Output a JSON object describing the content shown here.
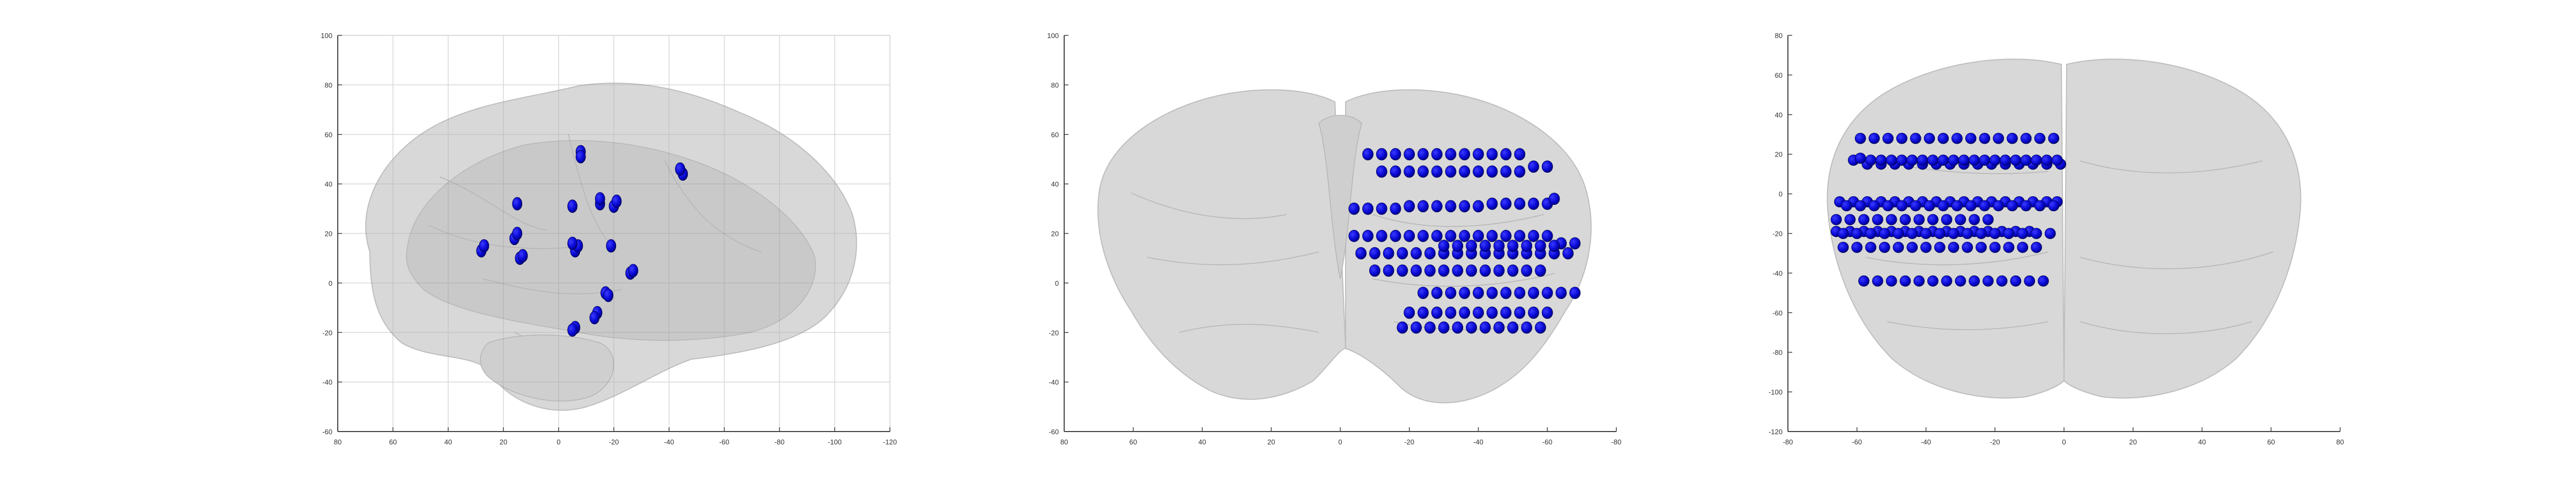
{
  "colors": {
    "electrode": "#0a0ad6",
    "brain_fill": "#8e8e8e",
    "brain_edge": "#6f6f6f",
    "grid": "#d8d8d8",
    "axis": "#444444",
    "tick_label": "#333333"
  },
  "chart_data": [
    {
      "type": "scatter",
      "view": "sagittal",
      "grid": true,
      "x_reversed": true,
      "xlim": [
        80,
        -120
      ],
      "ylim": [
        -60,
        100
      ],
      "x_ticks": [
        "80",
        "60",
        "40",
        "20",
        "0",
        "-20",
        "-40",
        "-60",
        "-80",
        "-100",
        "-120"
      ],
      "y_ticks": [
        "100",
        "80",
        "60",
        "40",
        "20",
        "0",
        "-20",
        "-40",
        "-60"
      ],
      "series": [
        {
          "marker": "dot",
          "x": [
            -8,
            -8,
            -6,
            -7,
            -45,
            -44,
            -20,
            -21,
            -5,
            -15,
            -15,
            -5,
            -19,
            -17,
            -18,
            -26,
            -27,
            -14,
            -13,
            -6,
            -5,
            28,
            27,
            16,
            15,
            14,
            13,
            15
          ],
          "y": [
            53,
            51,
            13,
            15,
            44,
            46,
            31,
            33,
            31,
            32,
            34,
            16,
            15,
            -4,
            -5,
            4,
            5,
            -12,
            -14,
            -18,
            -19,
            13,
            15,
            18,
            20,
            10,
            11,
            32
          ]
        }
      ]
    },
    {
      "type": "scatter",
      "view": "coronal",
      "grid": false,
      "x_reversed": true,
      "xlim": [
        80,
        -80
      ],
      "ylim": [
        -60,
        100
      ],
      "x_ticks": [
        "80",
        "60",
        "40",
        "20",
        "0",
        "-20",
        "-40",
        "-60",
        "-80"
      ],
      "y_ticks": [
        "100",
        "80",
        "60",
        "40",
        "20",
        "0",
        "-20",
        "-40",
        "-60"
      ],
      "series": [
        {
          "marker": "dot",
          "x": [
            -8,
            -12,
            -16,
            -20,
            -24,
            -28,
            -32,
            -36,
            -40,
            -44,
            -48,
            -52,
            -12,
            -16,
            -20,
            -24,
            -28,
            -32,
            -36,
            -40,
            -44,
            -48,
            -52,
            -56,
            -60,
            -4,
            -8,
            -12,
            -16,
            -20,
            -24,
            -28,
            -32,
            -36,
            -40,
            -44,
            -48,
            -52,
            -56,
            -60,
            -62,
            -4,
            -8,
            -12,
            -16,
            -20,
            -24,
            -28,
            -32,
            -36,
            -40,
            -44,
            -48,
            -52,
            -56,
            -60,
            -64,
            -68,
            -6,
            -10,
            -14,
            -18,
            -22,
            -26,
            -30,
            -34,
            -38,
            -42,
            -46,
            -50,
            -54,
            -58,
            -62,
            -66,
            -30,
            -34,
            -38,
            -42,
            -46,
            -50,
            -54,
            -58,
            -62,
            -10,
            -14,
            -18,
            -22,
            -26,
            -30,
            -34,
            -38,
            -42,
            -46,
            -50,
            -54,
            -58,
            -24,
            -28,
            -32,
            -36,
            -40,
            -44,
            -48,
            -52,
            -56,
            -60,
            -64,
            -68,
            -20,
            -24,
            -28,
            -32,
            -36,
            -40,
            -44,
            -48,
            -52,
            -56,
            -60,
            -18,
            -22,
            -26,
            -30,
            -34,
            -38,
            -42,
            -46,
            -50,
            -54,
            -58
          ],
          "y": [
            52,
            52,
            52,
            52,
            52,
            52,
            52,
            52,
            52,
            52,
            52,
            52,
            45,
            45,
            45,
            45,
            45,
            45,
            45,
            45,
            45,
            45,
            45,
            47,
            47,
            30,
            30,
            30,
            30,
            31,
            31,
            31,
            31,
            31,
            31,
            32,
            32,
            32,
            32,
            32,
            34,
            19,
            19,
            19,
            19,
            19,
            19,
            19,
            19,
            19,
            19,
            19,
            19,
            19,
            19,
            19,
            16,
            16,
            12,
            12,
            12,
            12,
            12,
            12,
            12,
            12,
            12,
            12,
            12,
            12,
            12,
            12,
            12,
            12,
            15,
            15,
            15,
            15,
            15,
            15,
            15,
            15,
            15,
            5,
            5,
            5,
            5,
            5,
            5,
            5,
            5,
            5,
            5,
            5,
            5,
            5,
            -4,
            -4,
            -4,
            -4,
            -4,
            -4,
            -4,
            -4,
            -4,
            -4,
            -4,
            -4,
            -12,
            -12,
            -12,
            -12,
            -12,
            -12,
            -12,
            -12,
            -12,
            -12,
            -12,
            -18,
            -18,
            -18,
            -18,
            -18,
            -18,
            -18,
            -18,
            -18,
            -18,
            -18
          ]
        }
      ]
    },
    {
      "type": "scatter",
      "view": "axial",
      "grid": false,
      "xlim": [
        -80,
        80
      ],
      "ylim": [
        -120,
        80
      ],
      "x_ticks": [
        "-80",
        "-60",
        "-40",
        "-20",
        "0",
        "20",
        "40",
        "60",
        "80"
      ],
      "y_ticks": [
        "80",
        "60",
        "40",
        "20",
        "0",
        "-20",
        "-40",
        "-60",
        "-80",
        "-100",
        "-120"
      ],
      "series": [
        {
          "marker": "dot",
          "x": [
            -59,
            -55,
            -51,
            -47,
            -43,
            -39,
            -35,
            -31,
            -27,
            -23,
            -19,
            -15,
            -11,
            -7,
            -3,
            -61,
            -57,
            -53,
            -49,
            -45,
            -41,
            -37,
            -33,
            -29,
            -25,
            -21,
            -17,
            -13,
            -9,
            -5,
            -1,
            -59,
            -56,
            -53,
            -50,
            -47,
            -44,
            -41,
            -38,
            -35,
            -32,
            -29,
            -26,
            -23,
            -20,
            -17,
            -14,
            -11,
            -8,
            -5,
            -2,
            -65,
            -61,
            -57,
            -53,
            -49,
            -45,
            -41,
            -37,
            -33,
            -29,
            -25,
            -21,
            -17,
            -13,
            -9,
            -5,
            -2,
            -63,
            -59,
            -55,
            -51,
            -47,
            -43,
            -39,
            -35,
            -31,
            -27,
            -23,
            -19,
            -15,
            -11,
            -7,
            -3,
            -66,
            -62,
            -58,
            -54,
            -50,
            -46,
            -42,
            -38,
            -34,
            -30,
            -26,
            -22,
            -66,
            -62,
            -58,
            -54,
            -50,
            -46,
            -42,
            -38,
            -34,
            -30,
            -26,
            -22,
            -18,
            -14,
            -10,
            -64,
            -60,
            -56,
            -52,
            -48,
            -44,
            -40,
            -36,
            -32,
            -28,
            -24,
            -20,
            -16,
            -12,
            -8,
            -4,
            -64,
            -60,
            -56,
            -52,
            -48,
            -44,
            -40,
            -36,
            -32,
            -28,
            -24,
            -20,
            -16,
            -12,
            -8,
            -58,
            -54,
            -50,
            -46,
            -42,
            -38,
            -34,
            -30,
            -26,
            -22,
            -18,
            -14,
            -10,
            -6
          ],
          "y": [
            28,
            28,
            28,
            28,
            28,
            28,
            28,
            28,
            28,
            28,
            28,
            28,
            28,
            28,
            28,
            17,
            15,
            15,
            15,
            15,
            15,
            15,
            15,
            15,
            15,
            15,
            15,
            15,
            15,
            15,
            15,
            18,
            17,
            17,
            17,
            17,
            17,
            17,
            17,
            17,
            17,
            17,
            17,
            17,
            17,
            17,
            17,
            17,
            17,
            17,
            17,
            -4,
            -4,
            -4,
            -4,
            -4,
            -4,
            -4,
            -4,
            -4,
            -4,
            -4,
            -4,
            -4,
            -4,
            -4,
            -4,
            -4,
            -6,
            -6,
            -6,
            -6,
            -6,
            -6,
            -6,
            -6,
            -6,
            -6,
            -6,
            -6,
            -6,
            -6,
            -6,
            -6,
            -13,
            -13,
            -13,
            -13,
            -13,
            -13,
            -13,
            -13,
            -13,
            -13,
            -13,
            -13,
            -19,
            -19,
            -19,
            -19,
            -19,
            -19,
            -19,
            -19,
            -19,
            -19,
            -19,
            -19,
            -19,
            -19,
            -19,
            -20,
            -20,
            -20,
            -20,
            -20,
            -20,
            -20,
            -20,
            -20,
            -20,
            -20,
            -20,
            -20,
            -20,
            -20,
            -20,
            -27,
            -27,
            -27,
            -27,
            -27,
            -27,
            -27,
            -27,
            -27,
            -27,
            -27,
            -27,
            -27,
            -27,
            -27,
            -44,
            -44,
            -44,
            -44,
            -44,
            -44,
            -44,
            -44,
            -44,
            -44,
            -44,
            -44,
            -44,
            -44
          ]
        }
      ]
    }
  ]
}
